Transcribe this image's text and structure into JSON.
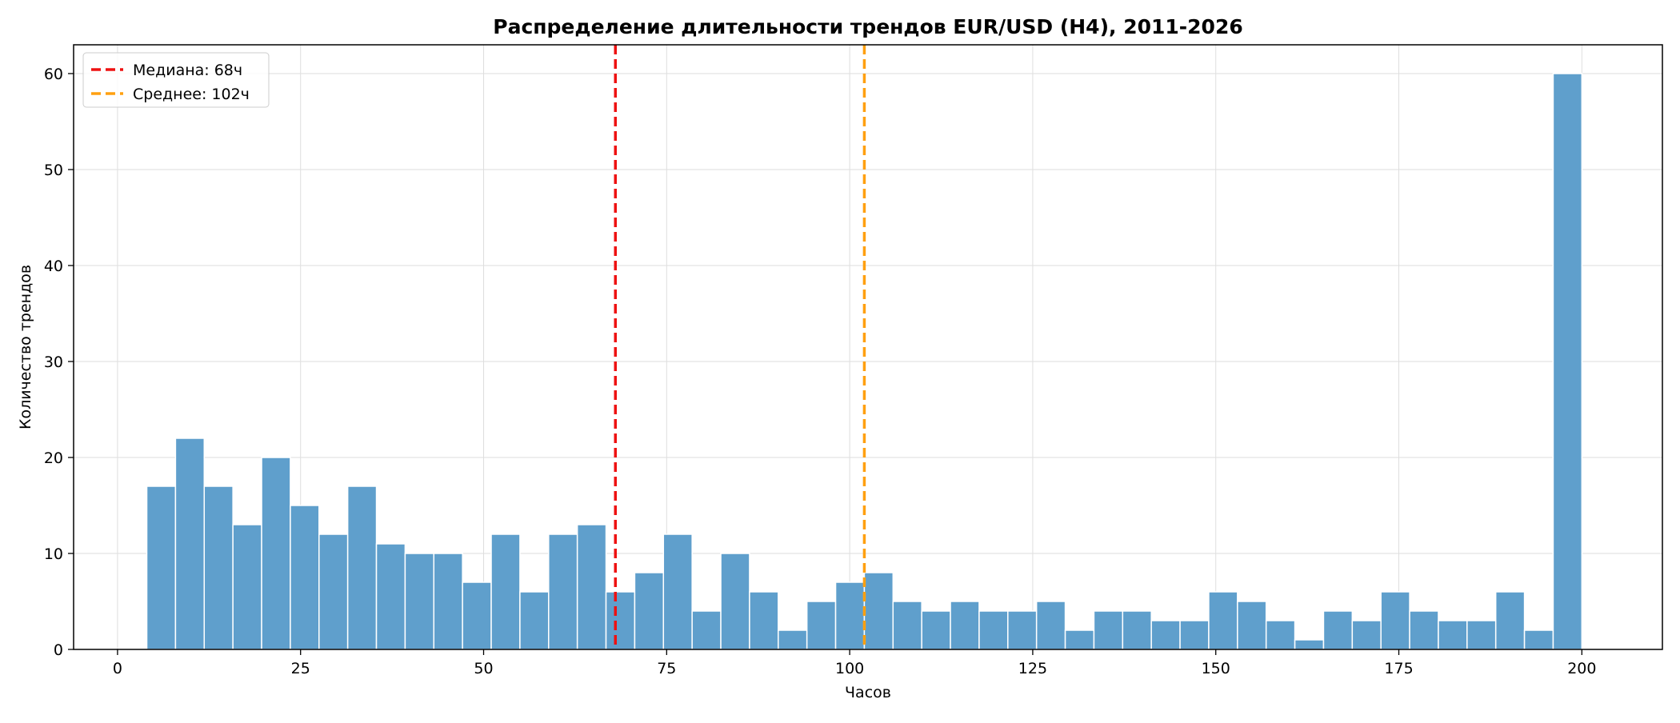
{
  "chart_data": {
    "type": "bar",
    "title": "Распределение длительности трендов EUR/USD (H4), 2011-2026",
    "xlabel": "Часов",
    "ylabel": "Количество трендов",
    "xlim": [
      -6,
      211
    ],
    "ylim": [
      0,
      63
    ],
    "xticks": [
      0,
      25,
      50,
      75,
      100,
      125,
      150,
      175,
      200
    ],
    "yticks": [
      0,
      10,
      20,
      30,
      40,
      50,
      60
    ],
    "grid": true,
    "legend_position": "top-left",
    "bar_color": "#5f9fcc",
    "bin_width": 3.92,
    "bin_start": 4,
    "values": [
      17,
      22,
      17,
      13,
      20,
      15,
      12,
      17,
      11,
      10,
      10,
      7,
      12,
      6,
      12,
      13,
      6,
      8,
      12,
      4,
      10,
      6,
      2,
      5,
      7,
      8,
      5,
      4,
      5,
      4,
      4,
      5,
      2,
      4,
      4,
      3,
      3,
      6,
      5,
      3,
      1,
      4,
      3,
      6,
      4,
      3,
      3,
      6,
      2,
      60
    ],
    "reference_lines": [
      {
        "label": "Медиана: 68ч",
        "x": 68,
        "color": "#ee1111"
      },
      {
        "label": "Среднее: 102ч",
        "x": 102,
        "color": "#ffa010"
      }
    ]
  }
}
